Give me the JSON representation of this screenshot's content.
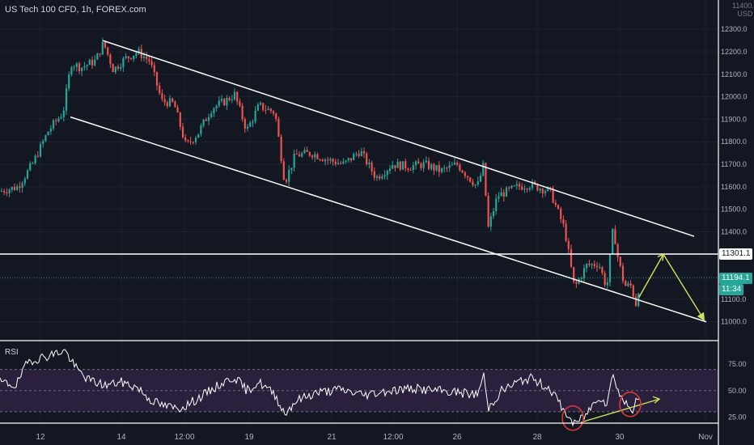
{
  "header": {
    "title": "US Tech 100 CFD, 1h, FOREX.com"
  },
  "axis_unit": {
    "top": "11400.0",
    "bottom": "USD"
  },
  "price_tags": {
    "level": "11301.1",
    "last": "11194.1",
    "countdown": "11:34"
  },
  "rsi": {
    "label": "RSI",
    "ticks": [
      "75.00",
      "50.00",
      "25.00"
    ]
  },
  "colors": {
    "bg": "#131722",
    "up": "#26a69a",
    "down": "#ef5350",
    "channel": "#ffffff",
    "projection": "#d4e157",
    "rsi_line": "#ffffff",
    "rsi_band": "#2a1f3d",
    "circle": "#e53935"
  },
  "chart_data": [
    {
      "type": "candlestick",
      "title": "US Tech 100 CFD, 1h, FOREX.com",
      "ylabel": "USD",
      "ylim": [
        10920,
        12430
      ],
      "yticks": [
        11000,
        11100,
        11200,
        11300,
        11400,
        11500,
        11600,
        11700,
        11800,
        11900,
        12000,
        12100,
        12200,
        12300
      ],
      "ytick_labels": [
        "11000.0",
        "11100.0",
        "11200.0",
        "11300.0",
        "11400.0",
        "11500.0",
        "11600.0",
        "11700.0",
        "11800.0",
        "11900.0",
        "12000.0",
        "12100.0",
        "12200.0",
        "12300.0"
      ],
      "xtick_labels": [
        "12",
        "14",
        "12:00",
        "19",
        "21",
        "12:00",
        "26",
        "28",
        "30",
        "Nov"
      ],
      "anchors": [
        [
          0,
          11580
        ],
        [
          22,
          11600
        ],
        [
          40,
          11700
        ],
        [
          60,
          11850
        ],
        [
          78,
          11930
        ],
        [
          88,
          12150
        ],
        [
          100,
          12130
        ],
        [
          118,
          12160
        ],
        [
          128,
          12240
        ],
        [
          140,
          12120
        ],
        [
          155,
          12170
        ],
        [
          170,
          12200
        ],
        [
          185,
          12160
        ],
        [
          200,
          11980
        ],
        [
          215,
          11970
        ],
        [
          230,
          11780
        ],
        [
          245,
          11840
        ],
        [
          262,
          11950
        ],
        [
          278,
          11980
        ],
        [
          290,
          12010
        ],
        [
          305,
          11850
        ],
        [
          320,
          11960
        ],
        [
          340,
          11930
        ],
        [
          352,
          11620
        ],
        [
          365,
          11740
        ],
        [
          385,
          11750
        ],
        [
          405,
          11720
        ],
        [
          425,
          11700
        ],
        [
          445,
          11760
        ],
        [
          465,
          11640
        ],
        [
          485,
          11700
        ],
        [
          505,
          11690
        ],
        [
          525,
          11700
        ],
        [
          545,
          11670
        ],
        [
          565,
          11700
        ],
        [
          590,
          11600
        ],
        [
          598,
          11700
        ],
        [
          603,
          11410
        ],
        [
          615,
          11560
        ],
        [
          640,
          11600
        ],
        [
          655,
          11610
        ],
        [
          680,
          11580
        ],
        [
          698,
          11410
        ],
        [
          710,
          11150
        ],
        [
          725,
          11250
        ],
        [
          740,
          11260
        ],
        [
          750,
          11150
        ],
        [
          758,
          11420
        ],
        [
          764,
          11280
        ],
        [
          772,
          11160
        ],
        [
          780,
          11160
        ],
        [
          786,
          11080
        ],
        [
          791,
          11180
        ]
      ],
      "last_price": 11194.1,
      "drawings": [
        {
          "name": "channel-upper",
          "points": [
            [
              127,
              12250
            ],
            [
              858,
              11380
            ]
          ]
        },
        {
          "name": "channel-lower",
          "points": [
            [
              87,
              11910
            ],
            [
              873,
              11000
            ]
          ]
        },
        {
          "name": "horizontal-level",
          "value": 11301.1
        },
        {
          "name": "projection",
          "points": [
            [
              790,
              11110
            ],
            [
              820,
              11300
            ],
            [
              870,
              11010
            ]
          ]
        }
      ]
    },
    {
      "type": "line",
      "title": "RSI",
      "ylim": [
        20,
        95
      ],
      "yticks": [
        75,
        50,
        25
      ],
      "band": [
        30,
        70
      ],
      "anchors": [
        [
          0,
          58
        ],
        [
          20,
          55
        ],
        [
          35,
          78
        ],
        [
          55,
          82
        ],
        [
          80,
          88
        ],
        [
          95,
          70
        ],
        [
          110,
          60
        ],
        [
          130,
          55
        ],
        [
          150,
          58
        ],
        [
          170,
          53
        ],
        [
          185,
          42
        ],
        [
          200,
          36
        ],
        [
          220,
          33
        ],
        [
          235,
          38
        ],
        [
          250,
          45
        ],
        [
          270,
          55
        ],
        [
          290,
          63
        ],
        [
          305,
          50
        ],
        [
          320,
          58
        ],
        [
          340,
          46
        ],
        [
          352,
          28
        ],
        [
          365,
          40
        ],
        [
          390,
          48
        ],
        [
          420,
          51
        ],
        [
          450,
          46
        ],
        [
          480,
          50
        ],
        [
          510,
          52
        ],
        [
          540,
          50
        ],
        [
          570,
          48
        ],
        [
          590,
          46
        ],
        [
          598,
          65
        ],
        [
          603,
          33
        ],
        [
          620,
          50
        ],
        [
          640,
          58
        ],
        [
          655,
          62
        ],
        [
          680,
          52
        ],
        [
          698,
          30
        ],
        [
          710,
          18
        ],
        [
          725,
          28
        ],
        [
          740,
          45
        ],
        [
          750,
          38
        ],
        [
          758,
          66
        ],
        [
          766,
          46
        ],
        [
          775,
          36
        ],
        [
          782,
          33
        ],
        [
          791,
          45
        ]
      ],
      "drawings": [
        {
          "name": "rsi-divergence-line",
          "points": [
            [
              718,
              20
            ],
            [
              815,
              42
            ]
          ]
        },
        {
          "name": "rsi-circle-1",
          "center": [
            708,
            24
          ]
        },
        {
          "name": "rsi-circle-2",
          "center": [
            779,
            37
          ]
        }
      ]
    }
  ]
}
